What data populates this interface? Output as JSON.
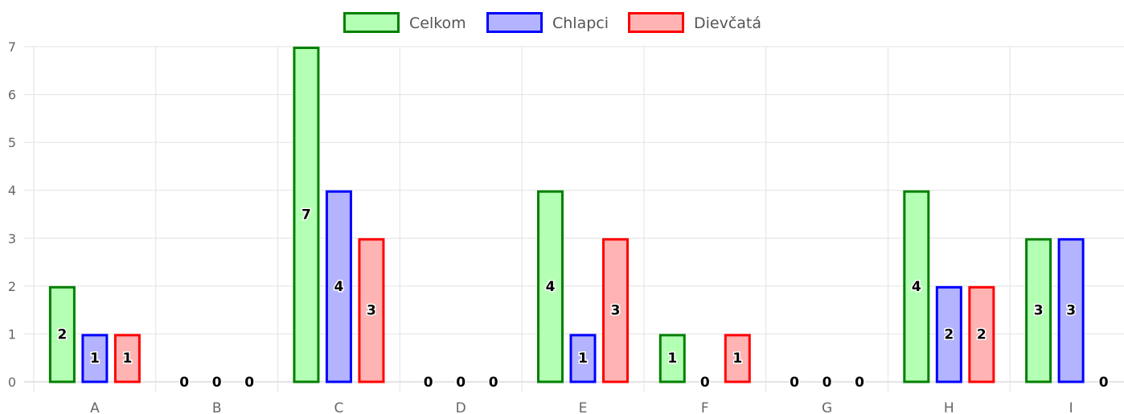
{
  "chart_data": {
    "type": "bar",
    "categories": [
      "A",
      "B",
      "C",
      "D",
      "E",
      "F",
      "G",
      "H",
      "I"
    ],
    "series": [
      {
        "name": "Celkom",
        "values": [
          2,
          0,
          7,
          0,
          4,
          1,
          0,
          4,
          3
        ],
        "fill": "#b3ffb3",
        "stroke": "#008000"
      },
      {
        "name": "Chlapci",
        "values": [
          1,
          0,
          4,
          0,
          1,
          0,
          0,
          2,
          3
        ],
        "fill": "#b3b3ff",
        "stroke": "#0000ff"
      },
      {
        "name": "Dievčatá",
        "values": [
          1,
          0,
          3,
          0,
          3,
          1,
          0,
          2,
          0
        ],
        "fill": "#ffb3b3",
        "stroke": "#ff0000"
      }
    ],
    "ylim": [
      0,
      7
    ],
    "yticks": [
      0,
      1,
      2,
      3,
      4,
      5,
      6,
      7
    ],
    "grid": true,
    "legend_position": "top-center",
    "data_labels": true
  }
}
